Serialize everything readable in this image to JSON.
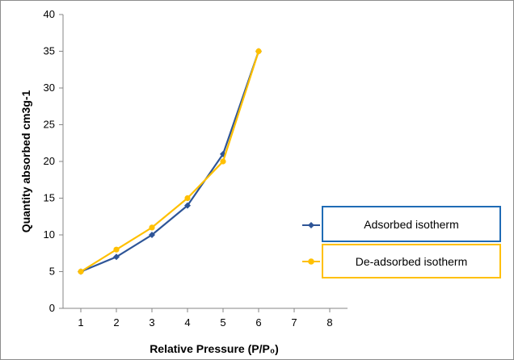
{
  "chart_data": {
    "type": "line",
    "xlabel": "Relative Pressure (P/P₀)",
    "ylabel": "Quantity absorbed cm3g-1",
    "xlim": [
      0.5,
      8.5
    ],
    "ylim": [
      0,
      40
    ],
    "x_ticks": [
      "1",
      "2",
      "3",
      "4",
      "5",
      "6",
      "7",
      "8"
    ],
    "y_ticks": [
      "0",
      "5",
      "10",
      "15",
      "20",
      "25",
      "30",
      "35",
      "40"
    ],
    "grid": false,
    "legend_position": "right",
    "series": [
      {
        "name": "Adsorbed isotherm",
        "color": "#2e5597",
        "marker": "diamond",
        "x": [
          1,
          2,
          3,
          4,
          5,
          6
        ],
        "y": [
          5,
          7,
          10,
          14,
          21,
          35
        ]
      },
      {
        "name": "De-adsorbed isotherm",
        "color": "#ffc000",
        "marker": "circle",
        "x": [
          1,
          2,
          3,
          4,
          5,
          6
        ],
        "y": [
          5,
          8,
          11,
          15,
          20,
          35
        ]
      }
    ]
  },
  "colors": {
    "legend_border_1": "#1f6bb5",
    "legend_border_2": "#ffc000"
  }
}
